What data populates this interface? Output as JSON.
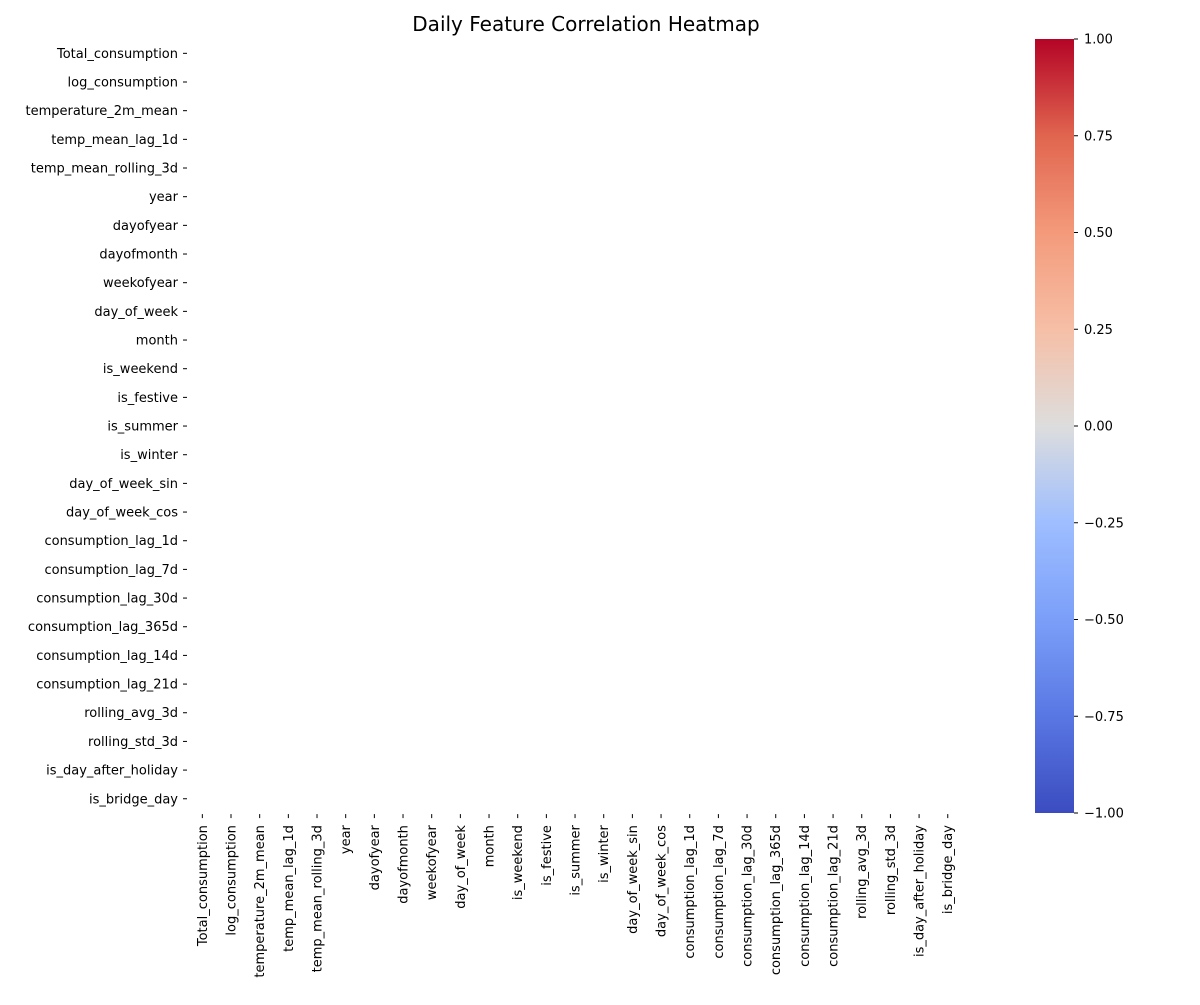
{
  "chart_data": {
    "type": "heatmap",
    "title": "Daily Feature Correlation Heatmap",
    "xlabel": "",
    "ylabel": "",
    "row_labels": [
      "Total_consumption",
      "log_consumption",
      "temperature_2m_mean",
      "temp_mean_lag_1d",
      "temp_mean_rolling_3d",
      "year",
      "dayofyear",
      "dayofmonth",
      "weekofyear",
      "day_of_week",
      "month",
      "is_weekend",
      "is_festive",
      "is_summer",
      "is_winter",
      "day_of_week_sin",
      "day_of_week_cos",
      "consumption_lag_1d",
      "consumption_lag_7d",
      "consumption_lag_30d",
      "consumption_lag_365d",
      "consumption_lag_14d",
      "consumption_lag_21d",
      "rolling_avg_3d",
      "rolling_std_3d",
      "is_day_after_holiday",
      "is_bridge_day"
    ],
    "column_labels": [
      "Total_consumption",
      "log_consumption",
      "temperature_2m_mean",
      "temp_mean_lag_1d",
      "temp_mean_rolling_3d",
      "year",
      "dayofyear",
      "dayofmonth",
      "weekofyear",
      "day_of_week",
      "month",
      "is_weekend",
      "is_festive",
      "is_summer",
      "is_winter",
      "day_of_week_sin",
      "day_of_week_cos",
      "consumption_lag_1d",
      "consumption_lag_7d",
      "consumption_lag_30d",
      "consumption_lag_365d",
      "consumption_lag_14d",
      "consumption_lag_21d",
      "rolling_avg_3d",
      "rolling_std_3d",
      "is_day_after_holiday",
      "is_bridge_day"
    ],
    "values": null,
    "cells_rendered": false,
    "colormap": "coolwarm",
    "colorbar": {
      "vmin": -1.0,
      "vmax": 1.0,
      "ticks": [
        -1.0,
        -0.75,
        -0.5,
        -0.25,
        0.0,
        0.25,
        0.5,
        0.75,
        1.0
      ],
      "tick_labels": [
        "−1.00",
        "−0.75",
        "−0.50",
        "−0.25",
        "0.00",
        "0.25",
        "0.50",
        "0.75",
        "1.00"
      ]
    },
    "grid": false
  },
  "colors": {
    "background": "#ffffff",
    "text": "#000000",
    "cmap_low": "#3b4cc0",
    "cmap_mid": "#dddddd",
    "cmap_high": "#b40426"
  }
}
